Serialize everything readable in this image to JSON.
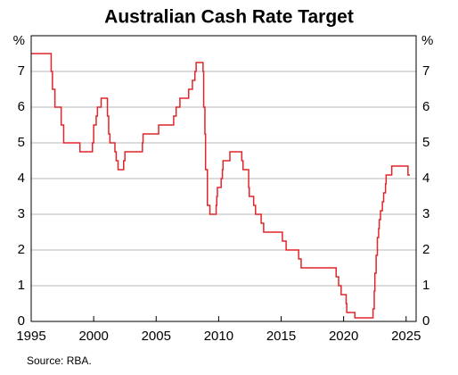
{
  "chart_data": {
    "type": "line",
    "title": "Australian Cash Rate Target",
    "source": "Source:   RBA.",
    "y_unit": "%",
    "step": true,
    "color": "#e0262a",
    "grid": true,
    "x": [
      1995.0,
      1996.6,
      1996.7,
      1996.9,
      1997.4,
      1997.6,
      1998.9,
      1999.9,
      2000.0,
      2000.2,
      2000.3,
      2000.6,
      2001.1,
      2001.2,
      2001.3,
      2001.7,
      2001.8,
      2001.95,
      2002.4,
      2002.5,
      2003.9,
      2003.95,
      2005.2,
      2006.4,
      2006.6,
      2006.9,
      2007.6,
      2007.9,
      2008.1,
      2008.2,
      2008.75,
      2008.8,
      2008.9,
      2008.95,
      2009.1,
      2009.3,
      2009.8,
      2009.85,
      2009.9,
      2010.2,
      2010.3,
      2010.35,
      2010.9,
      2011.85,
      2011.95,
      2012.4,
      2012.45,
      2012.8,
      2012.95,
      2013.4,
      2013.6,
      2015.1,
      2015.4,
      2016.4,
      2016.6,
      2019.4,
      2019.6,
      2019.8,
      2020.2,
      2020.25,
      2020.9,
      2022.35,
      2022.45,
      2022.5,
      2022.6,
      2022.7,
      2022.8,
      2022.85,
      2022.95,
      2023.1,
      2023.2,
      2023.35,
      2023.4,
      2023.85,
      2025.15,
      2025.3
    ],
    "values": [
      7.5,
      7.0,
      6.5,
      6.0,
      5.5,
      5.0,
      4.75,
      5.0,
      5.5,
      5.75,
      6.0,
      6.25,
      5.75,
      5.25,
      5.0,
      4.75,
      4.5,
      4.25,
      4.5,
      4.75,
      5.0,
      5.25,
      5.5,
      5.75,
      6.0,
      6.25,
      6.5,
      6.75,
      7.0,
      7.25,
      7.0,
      6.0,
      5.25,
      4.25,
      3.25,
      3.0,
      3.25,
      3.5,
      3.75,
      4.0,
      4.25,
      4.5,
      4.75,
      4.5,
      4.25,
      3.75,
      3.5,
      3.25,
      3.0,
      2.75,
      2.5,
      2.25,
      2.0,
      1.75,
      1.5,
      1.25,
      1.0,
      0.75,
      0.5,
      0.25,
      0.1,
      0.35,
      0.85,
      1.35,
      1.85,
      2.35,
      2.6,
      2.85,
      3.1,
      3.35,
      3.6,
      3.85,
      4.1,
      4.35,
      4.1,
      4.1
    ],
    "xlim": [
      1995,
      2025.8
    ],
    "xticks": [
      1995,
      2000,
      2005,
      2010,
      2015,
      2020,
      2025
    ],
    "ylim": [
      0,
      8
    ],
    "yticks": [
      0,
      1,
      2,
      3,
      4,
      5,
      6,
      7
    ]
  }
}
